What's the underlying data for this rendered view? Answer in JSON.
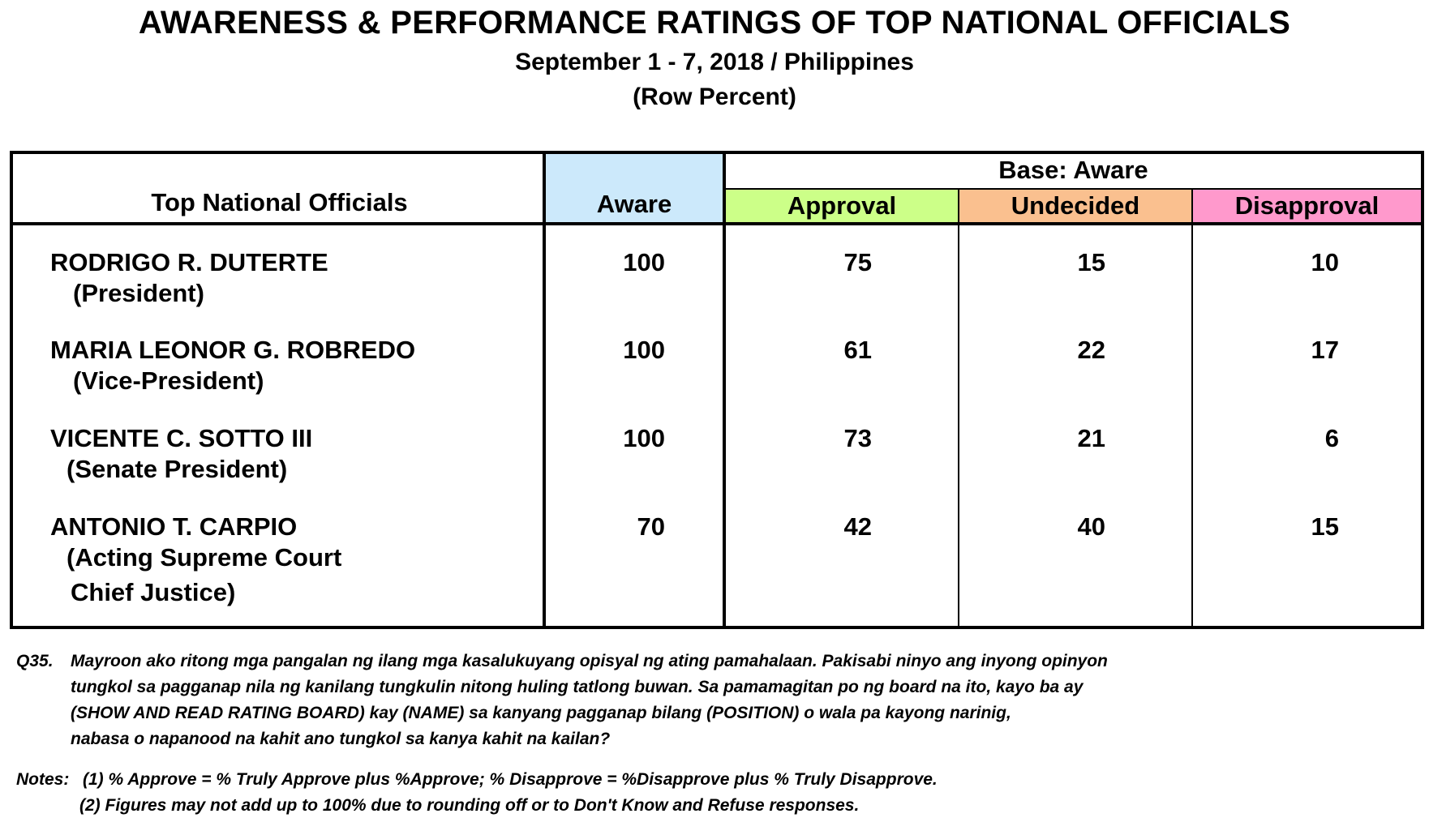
{
  "header": {
    "title": "AWARENESS & PERFORMANCE RATINGS OF TOP NATIONAL OFFICIALS",
    "subtitle": "September 1 - 7, 2018 / Philippines",
    "subtitle2": "(Row Percent)"
  },
  "table": {
    "col_officials": "Top National Officials",
    "col_aware": "Aware",
    "col_base": "Base: Aware",
    "col_approval": "Approval",
    "col_undecided": "Undecided",
    "col_disapproval": "Disapproval",
    "header_colors": {
      "aware": "#cce9fb",
      "approval": "#ccff88",
      "undecided": "#fac08f",
      "disapproval": "#ff99cc"
    },
    "rows": [
      {
        "name": "RODRIGO R. DUTERTE",
        "role_lines": [
          "(President)"
        ],
        "aware": "100",
        "approval": "75",
        "undecided": "15",
        "disapproval": "10"
      },
      {
        "name": "MARIA LEONOR G. ROBREDO",
        "role_lines": [
          "(Vice-President)"
        ],
        "aware": "100",
        "approval": "61",
        "undecided": "22",
        "disapproval": "17"
      },
      {
        "name": "VICENTE C. SOTTO III",
        "role_lines": [
          "(Senate President)"
        ],
        "aware": "100",
        "approval": "73",
        "undecided": "21",
        "disapproval": "6"
      },
      {
        "name": "ANTONIO T. CARPIO",
        "role_lines": [
          "(Acting Supreme Court",
          "Chief Justice)"
        ],
        "aware": "70",
        "approval": "42",
        "undecided": "40",
        "disapproval": "15"
      }
    ]
  },
  "question": {
    "number": "Q35.",
    "lines": [
      "Mayroon ako ritong mga pangalan ng ilang mga kasalukuyang opisyal ng ating pamahalaan.  Pakisabi ninyo ang inyong opinyon",
      "tungkol sa pagganap nila ng kanilang tungkulin nitong huling tatlong buwan. Sa pamamagitan po ng board na ito, kayo ba ay",
      "(SHOW AND READ RATING BOARD) kay (NAME) sa kanyang pagganap bilang (POSITION) o wala pa kayong narinig,",
      "nabasa o napanood na kahit ano tungkol sa kanya kahit na kailan?"
    ]
  },
  "notes": {
    "label": "Notes:",
    "lines": [
      "(1) % Approve = % Truly Approve plus %Approve; % Disapprove = %Disapprove plus % Truly Disapprove.",
      "(2) Figures may not add up to 100% due to rounding off or to Don't Know and Refuse responses."
    ]
  }
}
